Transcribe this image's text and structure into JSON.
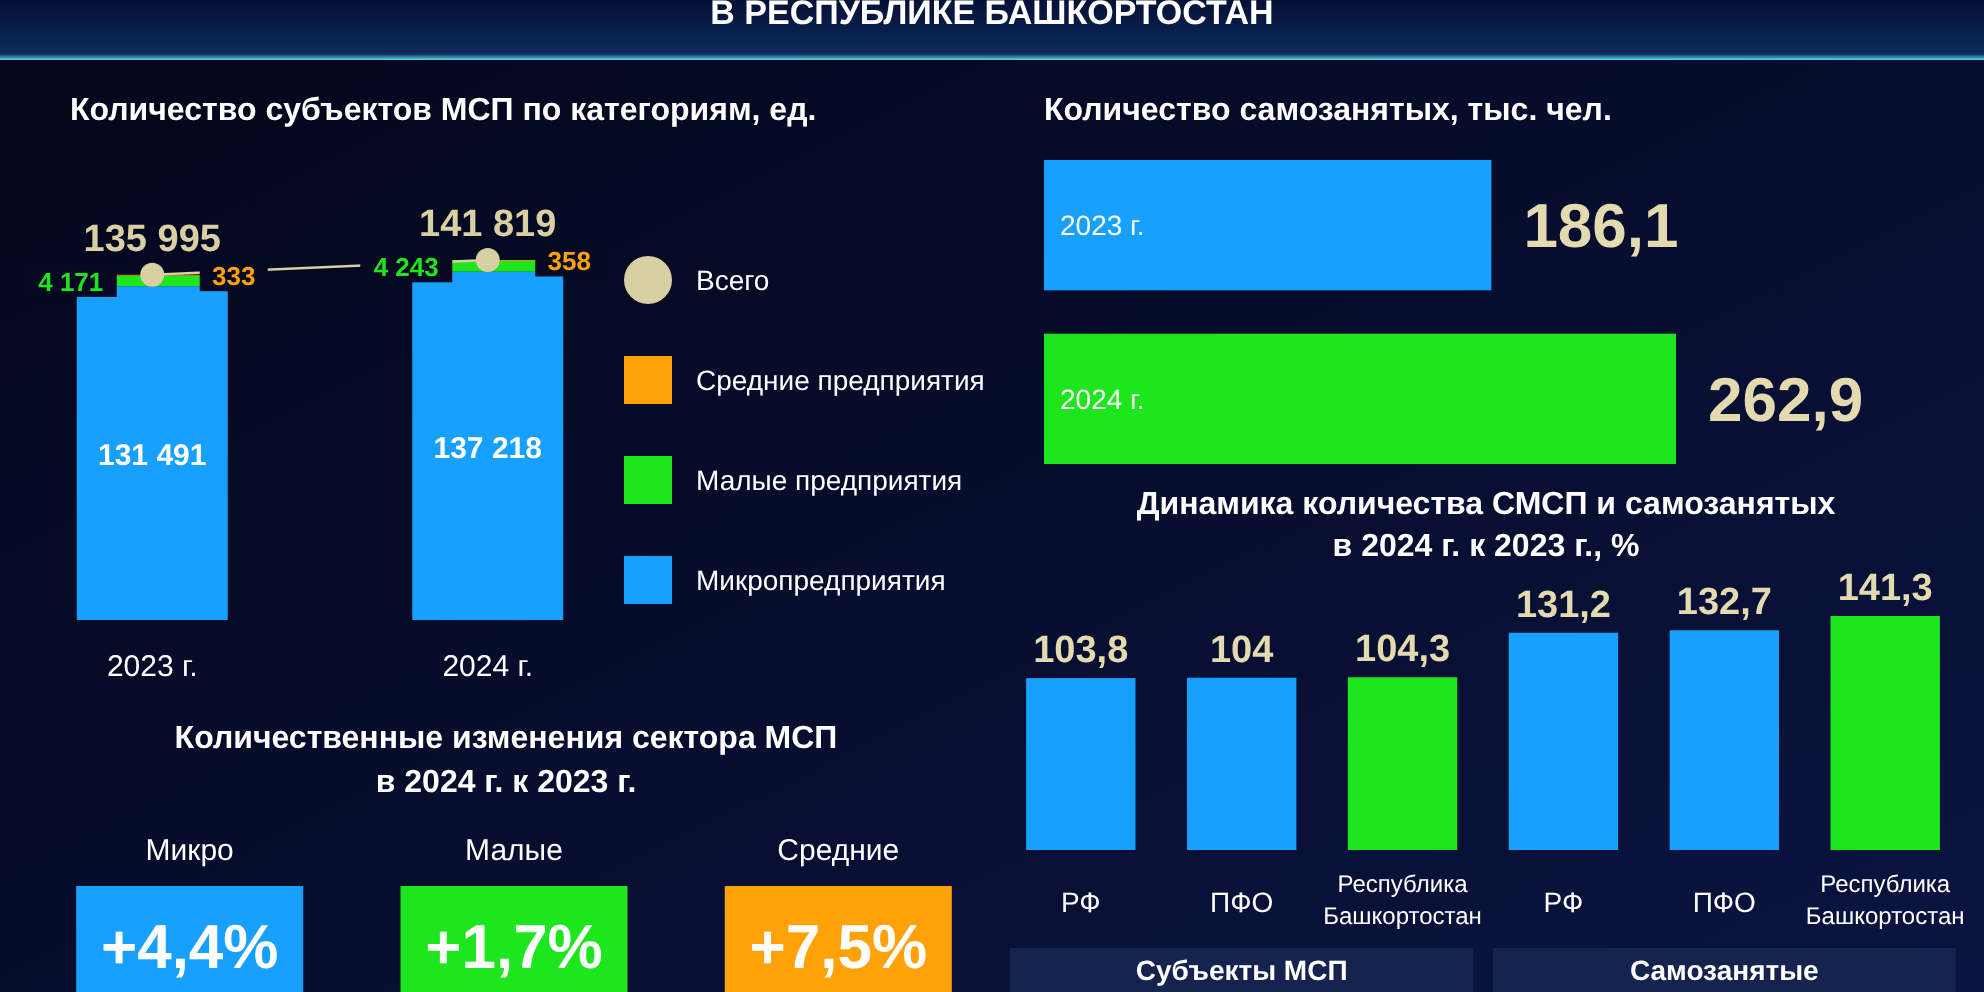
{
  "chart_data": [
    {
      "type": "bar",
      "stacked": true,
      "title": "Количество субъектов МСП по категориям, ед.",
      "annotations": [
        "В РЕСПУБЛИКЕ БАШКОРТОСТАН"
      ],
      "categories": [
        "2023 г.",
        "2024 г."
      ],
      "series": [
        {
          "name": "Микропредприятия",
          "color": "#18a0ff",
          "values": [
            131491,
            137218
          ]
        },
        {
          "name": "Малые предприятия",
          "color": "#1ee61e",
          "values": [
            4171,
            4243
          ]
        },
        {
          "name": "Средние предприятия",
          "color": "#ffa20a",
          "values": [
            333,
            358
          ]
        },
        {
          "name": "Всего",
          "type": "line",
          "color": "#d8cfa2",
          "values": [
            135995,
            141819
          ],
          "marker": "circle"
        }
      ],
      "data_labels": true,
      "legend": "right",
      "tick_labels": "x"
    },
    {
      "type": "bar",
      "orientation": "horizontal",
      "title": "Количество самозанятых, тыс. чел.",
      "categories": [
        "2023 г.",
        "2024 г."
      ],
      "values": [
        186.1,
        262.9
      ],
      "value_labels": [
        "186,1",
        "262,9"
      ],
      "colors": [
        "#18a0ff",
        "#1ee61e"
      ],
      "data_labels": true,
      "tick_labels": "y"
    },
    {
      "type": "bar",
      "title": "Динамика количества СМСП и самозанятых\nв 2024 г. к 2023 г., %",
      "categories": [
        "РФ",
        "ПФО",
        "Республика\nБашкортостан",
        "РФ",
        "ПФО",
        "Республика\nБашкортостан"
      ],
      "values": [
        103.8,
        104,
        104.3,
        131.2,
        132.7,
        141.3
      ],
      "value_labels": [
        "103,8",
        "104",
        "104,3",
        "131,2",
        "132,7",
        "141,3"
      ],
      "colors": [
        "#18a0ff",
        "#18a0ff",
        "#1ee61e",
        "#18a0ff",
        "#18a0ff",
        "#1ee61e"
      ],
      "data_labels": true,
      "tick_labels": "x",
      "annotations": [
        "Субъекты МСП",
        "Самозанятые"
      ]
    },
    {
      "type": "other",
      "title": "Количественные изменения сектора МСП\nв 2024 г. к 2023 г.",
      "categories": [
        "Микро",
        "Малые",
        "Средние"
      ],
      "values": [
        4.4,
        1.7,
        7.5
      ],
      "value_labels": [
        "+4,4%",
        "+1,7%",
        "+7,5%"
      ],
      "colors": [
        "#18a0ff",
        "#1ee61e",
        "#ffa20a"
      ]
    }
  ]
}
